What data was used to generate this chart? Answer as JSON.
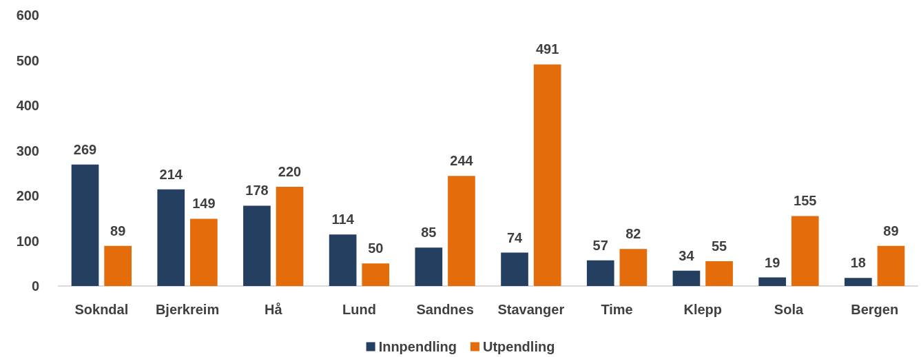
{
  "chart_data": {
    "type": "bar",
    "categories": [
      "Sokndal",
      "Bjerkreim",
      "Hå",
      "Lund",
      "Sandnes",
      "Stavanger",
      "Time",
      "Klepp",
      "Sola",
      "Bergen"
    ],
    "series": [
      {
        "name": "Innpendling",
        "color": "#243f60",
        "values": [
          269,
          214,
          178,
          114,
          85,
          74,
          57,
          34,
          19,
          18
        ]
      },
      {
        "name": "Utpendling",
        "color": "#e46c0a",
        "values": [
          89,
          149,
          220,
          50,
          244,
          491,
          82,
          55,
          155,
          89
        ]
      }
    ],
    "ylim": [
      0,
      600
    ],
    "yticks": [
      0,
      100,
      200,
      300,
      400,
      500,
      600
    ],
    "grid": false,
    "legend": "bottom",
    "data_labels": true
  }
}
